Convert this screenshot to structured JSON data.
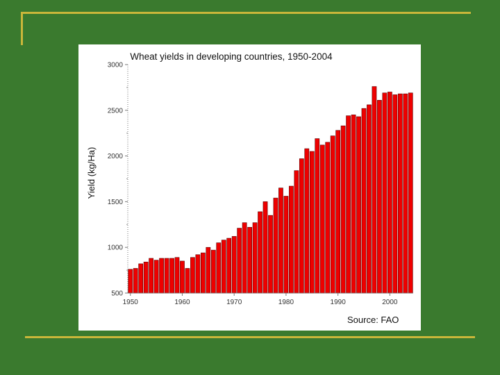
{
  "colors": {
    "background": "#3a7a2e",
    "accent_line": "#c9b63a",
    "bar_fill": "#ee0000",
    "bar_stroke": "#5a0000"
  },
  "source_note": "Source:  FAO",
  "chart_data": {
    "type": "bar",
    "title": "Wheat yields in developing countries, 1950-2004",
    "xlabel": "",
    "ylabel": "Yield (kg/Ha)",
    "ylim": [
      500,
      3000
    ],
    "yticks": [
      500,
      1000,
      1500,
      2000,
      2500,
      3000
    ],
    "yticklabels": [
      "500",
      "1000",
      "1500",
      "2000",
      "2500",
      "3000"
    ],
    "xticks": [
      1950,
      1960,
      1970,
      1980,
      1990,
      2000
    ],
    "xticklabels": [
      "1950",
      "1960",
      "1970",
      "1980",
      "1990",
      "2000"
    ],
    "grid": false,
    "categories": [
      1950,
      1951,
      1952,
      1953,
      1954,
      1955,
      1956,
      1957,
      1958,
      1959,
      1960,
      1961,
      1962,
      1963,
      1964,
      1965,
      1966,
      1967,
      1968,
      1969,
      1970,
      1971,
      1972,
      1973,
      1974,
      1975,
      1976,
      1977,
      1978,
      1979,
      1980,
      1981,
      1982,
      1983,
      1984,
      1985,
      1986,
      1987,
      1988,
      1989,
      1990,
      1991,
      1992,
      1993,
      1994,
      1995,
      1996,
      1997,
      1998,
      1999,
      2000,
      2001,
      2002,
      2003,
      2004
    ],
    "values": [
      760,
      770,
      820,
      840,
      880,
      860,
      880,
      880,
      880,
      890,
      850,
      770,
      890,
      920,
      940,
      1000,
      970,
      1050,
      1080,
      1100,
      1120,
      1210,
      1270,
      1220,
      1270,
      1390,
      1500,
      1350,
      1540,
      1650,
      1560,
      1670,
      1840,
      1970,
      2080,
      2050,
      2190,
      2120,
      2150,
      2220,
      2280,
      2330,
      2440,
      2450,
      2430,
      2520,
      2560,
      2760,
      2610,
      2690,
      2700,
      2670,
      2680,
      2680,
      2690
    ]
  }
}
